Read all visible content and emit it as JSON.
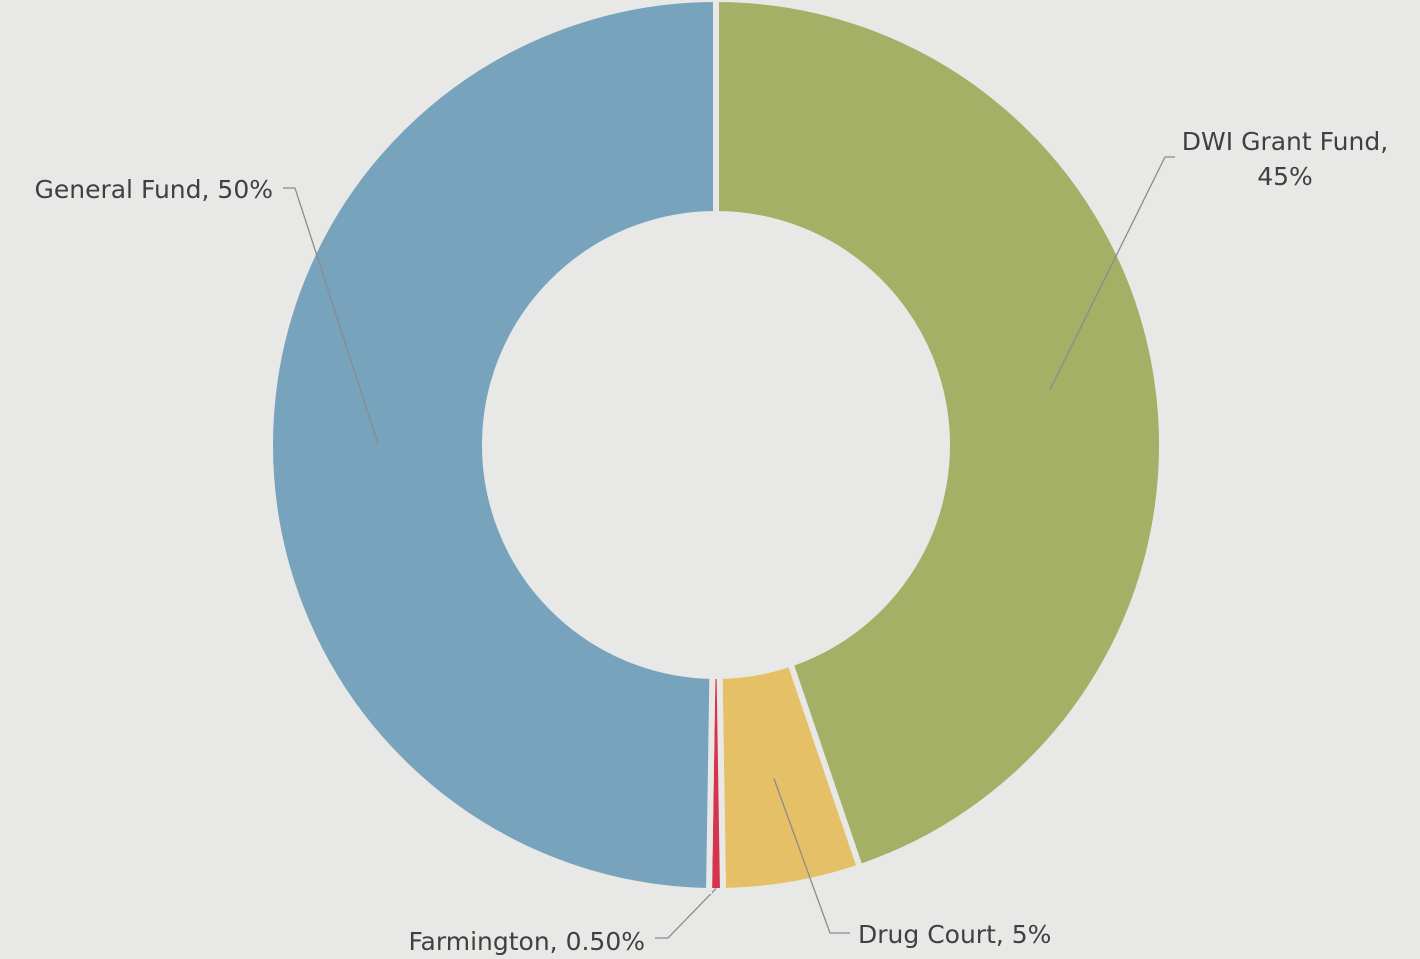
{
  "chart_data": {
    "type": "donut",
    "categories": [
      "DWI Grant Fund",
      "Drug Court",
      "Farmington",
      "General Fund"
    ],
    "values": [
      45,
      5,
      0.5,
      50
    ],
    "value_labels": [
      "45%",
      "5%",
      "0.50%",
      "50%"
    ],
    "colors": [
      "#a3b066",
      "#e6c067",
      "#d6344e",
      "#77a3bd"
    ]
  }
}
